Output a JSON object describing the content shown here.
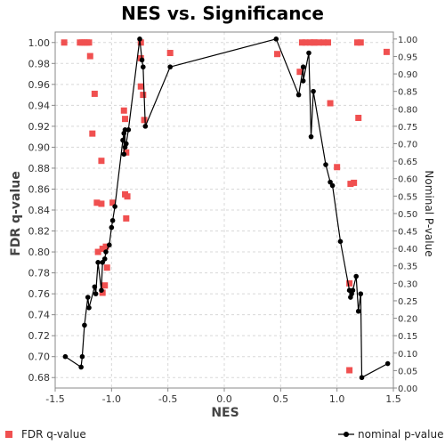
{
  "chart_data": {
    "type": "scatter",
    "title": "NES vs. Significance",
    "xlabel": "NES",
    "ylabel": "FDR q-value",
    "y2label": "Nominal P-value",
    "xlim": [
      -1.5,
      1.5
    ],
    "ylim": [
      0.67,
      1.01
    ],
    "y2lim": [
      0.0,
      1.02
    ],
    "x_ticks": [
      "-1.5",
      "-1.0",
      "-0.5",
      "0.0",
      "0.5",
      "1.0",
      "1.5"
    ],
    "y_ticks": [
      "0.68",
      "0.70",
      "0.72",
      "0.74",
      "0.76",
      "0.78",
      "0.80",
      "0.82",
      "0.84",
      "0.86",
      "0.88",
      "0.90",
      "0.92",
      "0.94",
      "0.96",
      "0.98",
      "1.00"
    ],
    "y2_ticks": [
      "0.00",
      "0.05",
      "0.10",
      "0.15",
      "0.20",
      "0.25",
      "0.30",
      "0.35",
      "0.40",
      "0.45",
      "0.50",
      "0.55",
      "0.60",
      "0.65",
      "0.70",
      "0.75",
      "0.80",
      "0.85",
      "0.90",
      "0.95",
      "1.00"
    ],
    "grid": true,
    "legend_position": "bottom",
    "series": [
      {
        "name": "FDR q-value",
        "style": "markers",
        "axis": "left",
        "color": "#f05050",
        "points": [
          [
            -1.42,
            1.0
          ],
          [
            -1.28,
            1.0
          ],
          [
            -1.26,
            1.0
          ],
          [
            -1.24,
            1.0
          ],
          [
            -1.22,
            1.0
          ],
          [
            -1.2,
            1.0
          ],
          [
            -1.19,
            0.987
          ],
          [
            -1.15,
            0.951
          ],
          [
            -1.17,
            0.913
          ],
          [
            -1.09,
            0.887
          ],
          [
            -1.13,
            0.847
          ],
          [
            -1.09,
            0.846
          ],
          [
            -1.12,
            0.8
          ],
          [
            -1.08,
            0.803
          ],
          [
            -1.05,
            0.805
          ],
          [
            -1.04,
            0.785
          ],
          [
            -1.06,
            0.768
          ],
          [
            -1.08,
            0.761
          ],
          [
            -0.99,
            0.847
          ],
          [
            -0.89,
            0.935
          ],
          [
            -0.88,
            0.927
          ],
          [
            -0.88,
            0.855
          ],
          [
            -0.86,
            0.853
          ],
          [
            -0.87,
            0.832
          ],
          [
            -0.87,
            0.895
          ],
          [
            -0.74,
            1.0
          ],
          [
            -0.74,
            0.985
          ],
          [
            -0.74,
            0.958
          ],
          [
            -0.72,
            0.95
          ],
          [
            -0.71,
            0.926
          ],
          [
            -0.48,
            0.99
          ],
          [
            0.47,
            0.989
          ],
          [
            0.67,
            0.972
          ],
          [
            0.69,
            1.0
          ],
          [
            0.72,
            1.0
          ],
          [
            0.76,
            1.0
          ],
          [
            0.79,
            1.0
          ],
          [
            0.8,
            1.0
          ],
          [
            0.84,
            1.0
          ],
          [
            0.88,
            1.0
          ],
          [
            0.92,
            1.0
          ],
          [
            0.94,
            0.942
          ],
          [
            1.0,
            0.881
          ],
          [
            1.12,
            0.865
          ],
          [
            1.15,
            0.866
          ],
          [
            1.11,
            0.77
          ],
          [
            1.18,
            1.0
          ],
          [
            1.21,
            1.0
          ],
          [
            1.19,
            0.928
          ],
          [
            1.11,
            0.687
          ],
          [
            1.44,
            0.991
          ]
        ]
      },
      {
        "name": "nominal p-value",
        "style": "line-markers",
        "axis": "right",
        "color": "#000000",
        "points": [
          [
            -1.41,
            0.09
          ],
          [
            -1.27,
            0.06
          ],
          [
            -1.26,
            0.09
          ],
          [
            -1.24,
            0.18
          ],
          [
            -1.21,
            0.26
          ],
          [
            -1.2,
            0.23
          ],
          [
            -1.15,
            0.29
          ],
          [
            -1.14,
            0.27
          ],
          [
            -1.12,
            0.36
          ],
          [
            -1.09,
            0.28
          ],
          [
            -1.08,
            0.36
          ],
          [
            -1.06,
            0.37
          ],
          [
            -1.05,
            0.39
          ],
          [
            -1.02,
            0.41
          ],
          [
            -1.0,
            0.46
          ],
          [
            -0.99,
            0.48
          ],
          [
            -0.97,
            0.52
          ],
          [
            -0.9,
            0.71
          ],
          [
            -0.89,
            0.73
          ],
          [
            -0.89,
            0.67
          ],
          [
            -0.88,
            0.74
          ],
          [
            -0.88,
            0.69
          ],
          [
            -0.87,
            0.7
          ],
          [
            -0.85,
            0.74
          ],
          [
            -0.75,
            1.0
          ],
          [
            -0.73,
            0.94
          ],
          [
            -0.72,
            0.92
          ],
          [
            -0.7,
            0.75
          ],
          [
            -0.48,
            0.92
          ],
          [
            0.46,
            1.0
          ],
          [
            0.66,
            0.84
          ],
          [
            0.7,
            0.92
          ],
          [
            0.7,
            0.88
          ],
          [
            0.75,
            0.96
          ],
          [
            0.77,
            0.72
          ],
          [
            0.79,
            0.85
          ],
          [
            0.9,
            0.64
          ],
          [
            0.94,
            0.59
          ],
          [
            0.96,
            0.58
          ],
          [
            1.03,
            0.42
          ],
          [
            1.11,
            0.28
          ],
          [
            1.12,
            0.26
          ],
          [
            1.13,
            0.27
          ],
          [
            1.14,
            0.28
          ],
          [
            1.17,
            0.32
          ],
          [
            1.19,
            0.22
          ],
          [
            1.21,
            0.27
          ],
          [
            1.22,
            0.03
          ],
          [
            1.45,
            0.07
          ]
        ]
      }
    ]
  }
}
